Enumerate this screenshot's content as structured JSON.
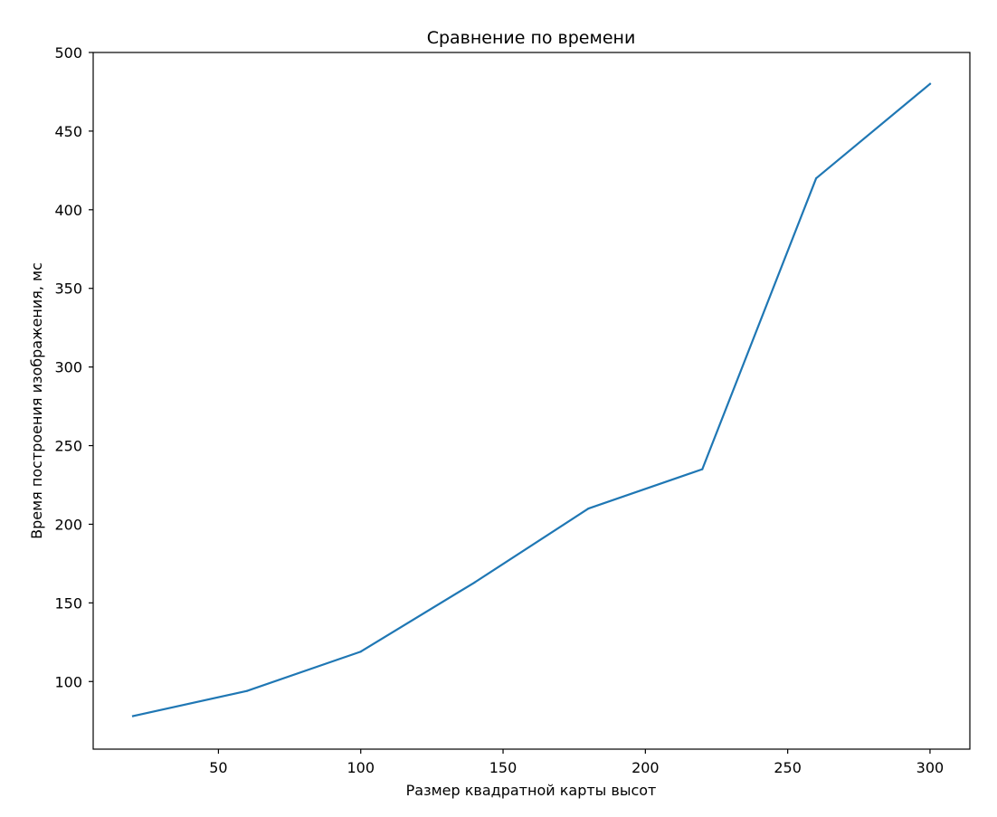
{
  "chart_data": {
    "type": "line",
    "title": "Сравнение по времени",
    "xlabel": "Размер квадратной карты высот",
    "ylabel": "Время построения изображения, мс",
    "xlim": [
      6,
      314
    ],
    "ylim": [
      57,
      500
    ],
    "xticks": [
      50,
      100,
      150,
      200,
      250,
      300
    ],
    "yticks": [
      100,
      150,
      200,
      250,
      300,
      350,
      400,
      450,
      500
    ],
    "grid": false,
    "series": [
      {
        "color": "#1f77b4",
        "x": [
          20,
          60,
          100,
          140,
          180,
          220,
          260,
          300
        ],
        "y": [
          78,
          94,
          119,
          163,
          210,
          235,
          420,
          480
        ]
      }
    ]
  }
}
